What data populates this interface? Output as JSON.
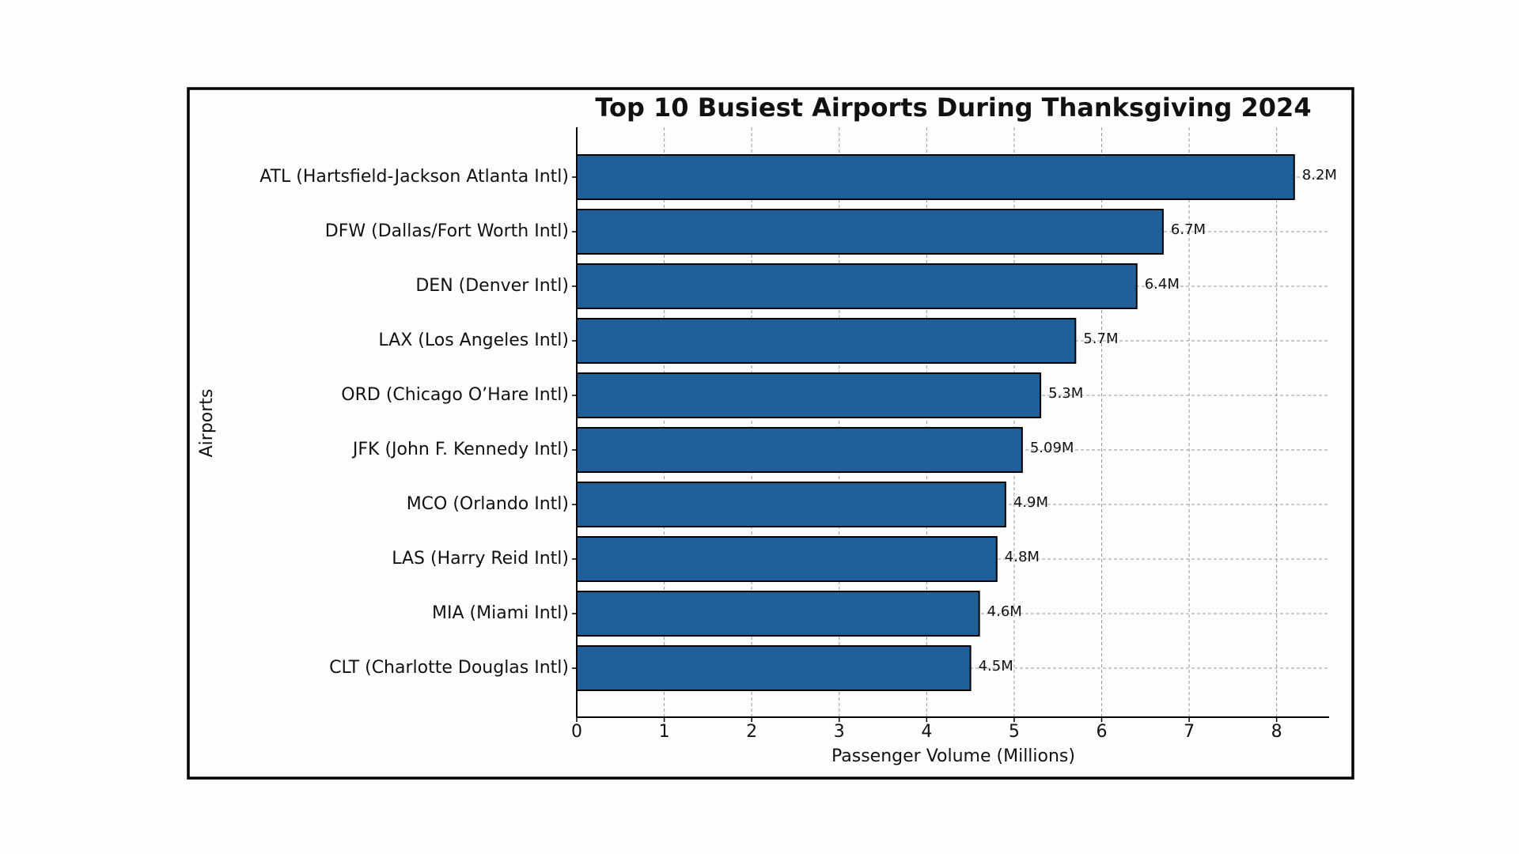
{
  "chart_data": {
    "type": "barh",
    "title": "Top 10 Busiest Airports During Thanksgiving 2024",
    "x_label": "Passenger Volume (Millions)",
    "y_label": "Airports",
    "categories": [
      "ATL (Hartsfield-Jackson Atlanta Intl)",
      "DFW (Dallas/Fort Worth Intl)",
      "DEN (Denver Intl)",
      "LAX (Los Angeles Intl)",
      "ORD (Chicago O’Hare Intl)",
      "JFK (John F. Kennedy Intl)",
      "MCO (Orlando Intl)",
      "LAS (Harry Reid Intl)",
      "MIA (Miami Intl)",
      "CLT (Charlotte Douglas Intl)"
    ],
    "values": [
      8.2,
      6.7,
      6.4,
      5.7,
      5.3,
      5.09,
      4.9,
      4.8,
      4.6,
      4.5
    ],
    "value_labels": [
      "8.2M",
      "6.7M",
      "6.4M",
      "5.7M",
      "5.3M",
      "5.09M",
      "4.9M",
      "4.8M",
      "4.6M",
      "4.5M"
    ],
    "color": "#1f6098",
    "xlim": [
      0,
      8.6
    ],
    "xticks": [
      0,
      1,
      2,
      3,
      4,
      5,
      6,
      7,
      8
    ],
    "grid": true
  }
}
